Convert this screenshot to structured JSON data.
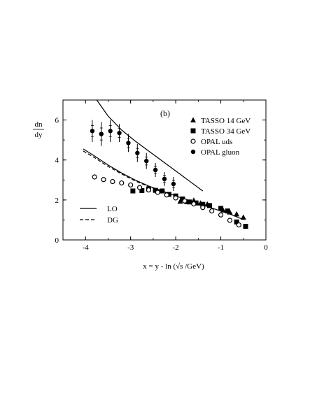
{
  "chart_data": {
    "type": "scatter",
    "panel_label": "(b)",
    "ylabel_top": "dn",
    "ylabel_bottom": "dy",
    "xlabel_prefix": "x = y - ln (",
    "xlabel_sqrt": "√s",
    "xlabel_suffix": " /GeV)",
    "xlim": [
      -4.5,
      0
    ],
    "ylim": [
      0,
      7
    ],
    "x_ticks": [
      {
        "value": -4,
        "label": "-4"
      },
      {
        "value": -3,
        "label": "-3"
      },
      {
        "value": -2,
        "label": "-2"
      },
      {
        "value": -1,
        "label": "-1"
      },
      {
        "value": 0,
        "label": "0"
      }
    ],
    "y_ticks": [
      {
        "value": 0,
        "label": "0"
      },
      {
        "value": 2,
        "label": "2"
      },
      {
        "value": 4,
        "label": "4"
      },
      {
        "value": 6,
        "label": "6"
      }
    ],
    "series": [
      {
        "name": "TASSO 14 GeV",
        "marker": "triangle",
        "x": [
          -1.9,
          -1.75,
          -1.6,
          -1.45,
          -1.3,
          -0.95,
          -0.8,
          -0.65,
          -0.5
        ],
        "y": [
          1.92,
          1.9,
          1.97,
          1.83,
          1.78,
          1.48,
          1.38,
          1.28,
          1.12
        ]
      },
      {
        "name": "TASSO 34 GeV",
        "marker": "square",
        "x": [
          -2.95,
          -2.75,
          -2.6,
          -2.45,
          -2.3,
          -2.15,
          -2.0,
          -1.85,
          -1.7,
          -1.55,
          -1.4,
          -1.25,
          -1.0,
          -0.85,
          -0.65,
          -0.45
        ],
        "y": [
          2.45,
          2.47,
          2.55,
          2.48,
          2.45,
          2.28,
          2.2,
          2.05,
          1.9,
          1.85,
          1.78,
          1.72,
          1.58,
          1.45,
          0.9,
          0.68
        ]
      },
      {
        "name": "OPAL uds",
        "marker": "open-circle",
        "x": [
          -3.8,
          -3.6,
          -3.4,
          -3.2,
          -3.0,
          -2.8,
          -2.6,
          -2.4,
          -2.2,
          -2.0,
          -1.8,
          -1.6,
          -1.4,
          -1.2,
          -1.0,
          -0.8,
          -0.6
        ],
        "y": [
          3.15,
          3.02,
          2.92,
          2.85,
          2.75,
          2.62,
          2.5,
          2.38,
          2.25,
          2.1,
          1.95,
          1.8,
          1.62,
          1.45,
          1.25,
          0.98,
          0.75
        ]
      },
      {
        "name": "OPAL gluon",
        "marker": "filled-circle",
        "x": [
          -3.85,
          -3.65,
          -3.45,
          -3.25,
          -3.05,
          -2.85,
          -2.65,
          -2.45,
          -2.25,
          -2.05
        ],
        "y": [
          5.45,
          5.3,
          5.45,
          5.35,
          4.85,
          4.35,
          3.95,
          3.5,
          3.05,
          2.8
        ],
        "err": [
          0.55,
          0.6,
          0.55,
          0.45,
          0.45,
          0.45,
          0.4,
          0.35,
          0.35,
          0.35
        ]
      }
    ],
    "curves": [
      {
        "name": "LO",
        "style": "solid",
        "x": [
          -3.75,
          -3.5,
          -3.2,
          -2.9,
          -2.6,
          -2.3,
          -2.0,
          -1.7,
          -1.4
        ],
        "y": [
          7.0,
          6.2,
          5.5,
          4.95,
          4.45,
          3.95,
          3.45,
          2.95,
          2.45
        ]
      },
      {
        "name": "LO",
        "style": "solid",
        "x": [
          -4.05,
          -3.8,
          -3.5,
          -3.2,
          -2.9,
          -2.6,
          -2.3,
          -2.0,
          -1.7,
          -1.4,
          -1.1,
          -0.8,
          -0.5
        ],
        "y": [
          4.55,
          4.2,
          3.75,
          3.35,
          3.0,
          2.7,
          2.45,
          2.2,
          1.97,
          1.75,
          1.52,
          1.3,
          1.02
        ]
      },
      {
        "name": "DG",
        "style": "dashed",
        "x": [
          -4.05,
          -3.8,
          -3.5,
          -3.2,
          -2.9,
          -2.6,
          -2.3,
          -2.0
        ],
        "y": [
          4.45,
          4.12,
          3.68,
          3.3,
          2.95,
          2.67,
          2.44,
          2.2
        ]
      }
    ],
    "legend_markers": [
      {
        "label": "TASSO 14 GeV",
        "marker": "triangle"
      },
      {
        "label": "TASSO 34 GeV",
        "marker": "square"
      },
      {
        "label": "OPAL uds",
        "marker": "open-circle"
      },
      {
        "label": "OPAL gluon",
        "marker": "filled-circle"
      }
    ],
    "legend_lines": [
      {
        "label": "LO",
        "style": "solid"
      },
      {
        "label": "DG",
        "style": "dashed"
      }
    ]
  }
}
